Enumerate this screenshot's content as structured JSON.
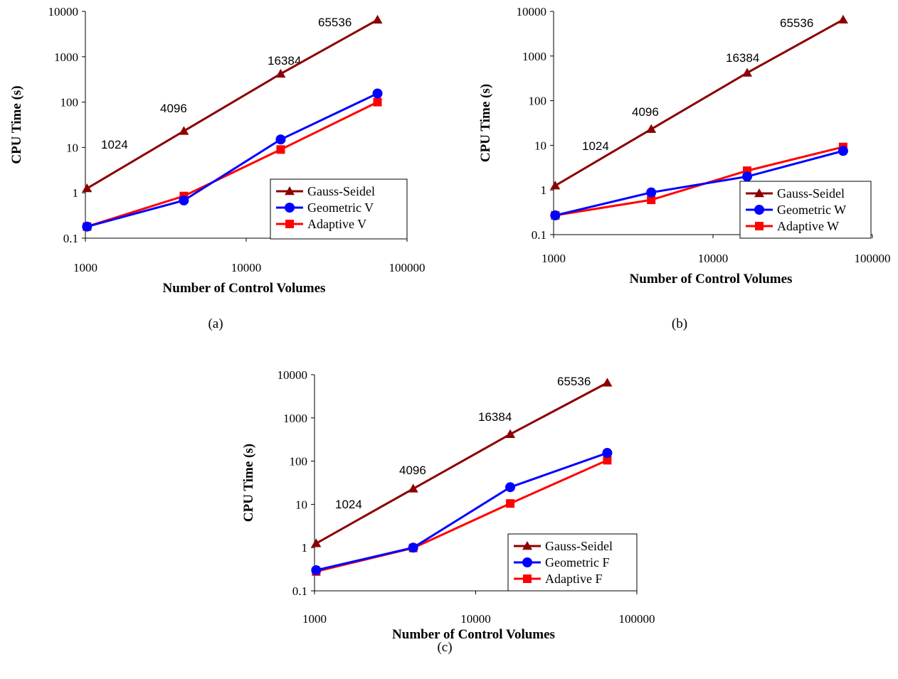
{
  "chart_data": [
    {
      "type": "line",
      "caption": "(a)",
      "xlabel": "Number of Control Volumes",
      "ylabel": "CPU Time (s)",
      "x_scale": "log",
      "y_scale": "log",
      "xlim": [
        1000,
        100000
      ],
      "ylim": [
        0.1,
        10000
      ],
      "x_ticks": [
        "1000",
        "10000",
        "100000"
      ],
      "y_ticks": [
        "0.1",
        "1",
        "10",
        "100",
        "1000",
        "10000"
      ],
      "grid": false,
      "legend_position": "bottom-right",
      "x": [
        1024,
        4096,
        16384,
        65536
      ],
      "point_labels": [
        "1024",
        "4096",
        "16384",
        "65536"
      ],
      "series": [
        {
          "name": "Gauss-Seidel",
          "values": [
            1.25,
            23,
            420,
            6500
          ],
          "color": "#8b0000",
          "marker": "triangle"
        },
        {
          "name": "Geometric V",
          "values": [
            0.18,
            0.68,
            15,
            155
          ],
          "color": "#0000ff",
          "marker": "circle"
        },
        {
          "name": "Adaptive V",
          "values": [
            0.18,
            0.85,
            9,
            100
          ],
          "color": "#ff0000",
          "marker": "square"
        }
      ]
    },
    {
      "type": "line",
      "caption": "(b)",
      "xlabel": "Number of Control Volumes",
      "ylabel": "CPU Time (s)",
      "x_scale": "log",
      "y_scale": "log",
      "xlim": [
        1000,
        100000
      ],
      "ylim": [
        0.1,
        10000
      ],
      "x_ticks": [
        "1000",
        "10000",
        "100000"
      ],
      "y_ticks": [
        "0.1",
        "1",
        "10",
        "100",
        "1000",
        "10000"
      ],
      "grid": false,
      "legend_position": "bottom-right",
      "x": [
        1024,
        4096,
        16384,
        65536
      ],
      "point_labels": [
        "1024",
        "4096",
        "16384",
        "65536"
      ],
      "series": [
        {
          "name": "Gauss-Seidel",
          "values": [
            1.25,
            23,
            420,
            6500
          ],
          "color": "#8b0000",
          "marker": "triangle"
        },
        {
          "name": "Geometric W",
          "values": [
            0.27,
            0.88,
            2.0,
            7.5
          ],
          "color": "#0000ff",
          "marker": "circle"
        },
        {
          "name": "Adaptive W",
          "values": [
            0.27,
            0.6,
            2.7,
            9.2
          ],
          "color": "#ff0000",
          "marker": "square"
        }
      ]
    },
    {
      "type": "line",
      "caption": "(c)",
      "xlabel": "Number of Control Volumes",
      "ylabel": "CPU Time (s)",
      "x_scale": "log",
      "y_scale": "log",
      "xlim": [
        1000,
        100000
      ],
      "ylim": [
        0.1,
        10000
      ],
      "x_ticks": [
        "1000",
        "10000",
        "100000"
      ],
      "y_ticks": [
        "0.1",
        "1",
        "10",
        "100",
        "1000",
        "10000"
      ],
      "grid": false,
      "legend_position": "bottom-right",
      "x": [
        1024,
        4096,
        16384,
        65536
      ],
      "point_labels": [
        "1024",
        "4096",
        "16384",
        "65536"
      ],
      "series": [
        {
          "name": "Gauss-Seidel",
          "values": [
            1.25,
            23,
            420,
            6500
          ],
          "color": "#8b0000",
          "marker": "triangle"
        },
        {
          "name": "Geometric F",
          "values": [
            0.3,
            1.0,
            25,
            155
          ],
          "color": "#0000ff",
          "marker": "circle"
        },
        {
          "name": "Adaptive F",
          "values": [
            0.28,
            0.98,
            10.5,
            105
          ],
          "color": "#ff0000",
          "marker": "square"
        }
      ]
    }
  ]
}
